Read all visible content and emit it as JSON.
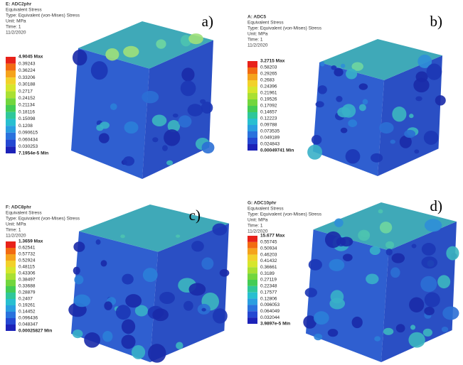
{
  "panels": [
    {
      "label": "a)",
      "header": [
        "E: ADC2phr",
        "Equivalent Stress",
        "Type: Equivalent (von-Mises) Stress",
        "Unit: MPa",
        "Time: 1",
        "11/2/2020"
      ],
      "legend": [
        "4.9045 Max",
        "0.39243",
        "0.36224",
        "0.33206",
        "0.30188",
        "0.2717",
        "0.24152",
        "0.21134",
        "0.18116",
        "0.15098",
        "0.1208",
        "0.090615",
        "0.060434",
        "0.030253",
        "7.1954e-5 Min"
      ]
    },
    {
      "label": "b)",
      "header": [
        "A: ADC5",
        "Equivalent Stress",
        "Type: Equivalent (von-Mises) Stress",
        "Unit: MPa",
        "Time: 1",
        "11/2/2020"
      ],
      "legend": [
        "3.2715 Max",
        "0.58203",
        "0.29265",
        "0.2683",
        "0.24396",
        "0.21961",
        "0.19526",
        "0.17092",
        "0.14657",
        "0.12223",
        "0.09788",
        "0.073535",
        "0.049189",
        "0.024843",
        "0.00049741 Min"
      ]
    },
    {
      "label": "c)",
      "header": [
        "F: ADC8phr",
        "Equivalent Stress",
        "Type: Equivalent (von-Mises) Stress",
        "Unit: MPa",
        "Time: 1",
        "11/2/2020"
      ],
      "legend": [
        "1.3659 Max",
        "0.62541",
        "0.57732",
        "0.52924",
        "0.48115",
        "0.43306",
        "0.38497",
        "0.33688",
        "0.28879",
        "0.2407",
        "0.19261",
        "0.14452",
        "0.096436",
        "0.048347",
        "0.00025827 Min"
      ]
    },
    {
      "label": "d)",
      "header": [
        "G: ADC10phr",
        "Equivalent Stress",
        "Type: Equivalent (von-Mises) Stress",
        "Unit: MPa",
        "Time: 1",
        "11/2/2020"
      ],
      "legend": [
        "15.677 Max",
        "0.55745",
        "0.50934",
        "0.46203",
        "0.41432",
        "0.36661",
        "0.3189",
        "0.27119",
        "0.22348",
        "0.17577",
        "0.12806",
        "0.096053",
        "0.064049",
        "0.032044",
        "3.9897e-5 Min"
      ]
    }
  ]
}
